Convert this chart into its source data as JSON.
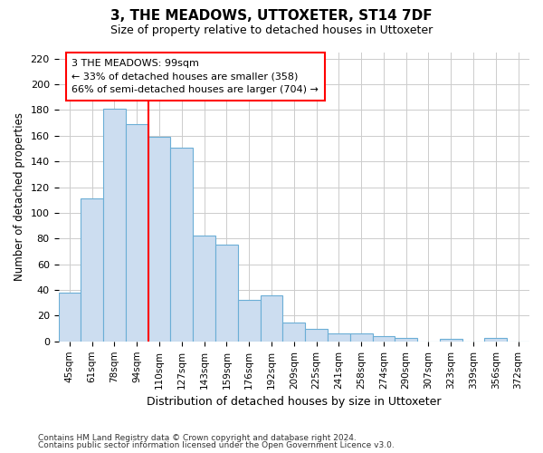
{
  "title": "3, THE MEADOWS, UTTOXETER, ST14 7DF",
  "subtitle": "Size of property relative to detached houses in Uttoxeter",
  "xlabel": "Distribution of detached houses by size in Uttoxeter",
  "ylabel": "Number of detached properties",
  "footer_line1": "Contains HM Land Registry data © Crown copyright and database right 2024.",
  "footer_line2": "Contains public sector information licensed under the Open Government Licence v3.0.",
  "categories": [
    "45sqm",
    "61sqm",
    "78sqm",
    "94sqm",
    "110sqm",
    "127sqm",
    "143sqm",
    "159sqm",
    "176sqm",
    "192sqm",
    "209sqm",
    "225sqm",
    "241sqm",
    "258sqm",
    "274sqm",
    "290sqm",
    "307sqm",
    "323sqm",
    "339sqm",
    "356sqm",
    "372sqm"
  ],
  "values": [
    38,
    111,
    181,
    169,
    159,
    151,
    82,
    75,
    32,
    36,
    15,
    10,
    6,
    6,
    4,
    3,
    0,
    2,
    0,
    3,
    0
  ],
  "bar_color": "#ccddf0",
  "bar_edge_color": "#6baed6",
  "grid_color": "#cccccc",
  "bg_color": "#ffffff",
  "vline_color": "red",
  "vline_x_index": 3,
  "annotation_line1": "3 THE MEADOWS: 99sqm",
  "annotation_line2": "← 33% of detached houses are smaller (358)",
  "annotation_line3": "66% of semi-detached houses are larger (704) →",
  "annotation_box_facecolor": "white",
  "annotation_box_edgecolor": "red",
  "ylim": [
    0,
    225
  ],
  "yticks": [
    0,
    20,
    40,
    60,
    80,
    100,
    120,
    140,
    160,
    180,
    200,
    220
  ]
}
